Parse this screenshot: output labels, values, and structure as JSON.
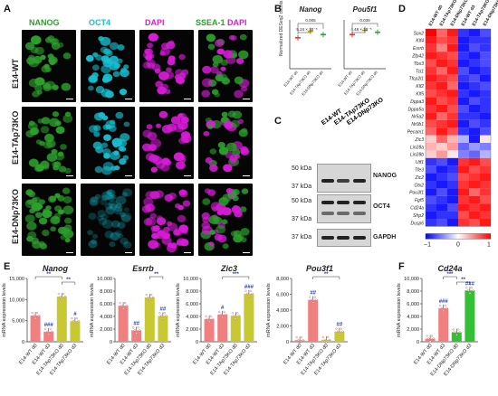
{
  "panel_labels": {
    "A": "A",
    "B": "B",
    "C": "C",
    "D": "D",
    "E": "E",
    "F": "F"
  },
  "panelA": {
    "columns": [
      "NANOG",
      "OCT4",
      "DAPI",
      "SSEA-1"
    ],
    "merge_suffix": "DAPI",
    "rows": [
      "E14-WT",
      "E14-TAp73KO",
      "E14-DNp73KO"
    ],
    "colors": {
      "NANOG": "#2ca02c",
      "OCT4": "#17becf",
      "DAPI": "#d81bd8",
      "SSEA-1": "#2ca02c"
    }
  },
  "panelB": {
    "ylabel": "Normalized DESeq2 counts",
    "charts": [
      {
        "title": "Nanog",
        "categories": [
          "E14-WT d0",
          "E14-TAp73KO d0",
          "E14-DNp73KO d0"
        ],
        "values": [
          9.5,
          11.5,
          10.5
        ],
        "pvalue1": "0.005",
        "pvalue2": "5.24 × 10⁻⁵",
        "ylim": [
          0,
          15
        ],
        "colors": [
          "#e53935",
          "#c0a000",
          "#2e9e3e"
        ]
      },
      {
        "title": "Pou5f1",
        "categories": [
          "E14-WT d0",
          "E14-TAp73KO d0",
          "E14-DNp73KO d0"
        ],
        "values": [
          10.5,
          11.8,
          11.2
        ],
        "pvalue1": "0.039",
        "pvalue2": "4.48 × 10⁻⁵",
        "ylim": [
          0,
          15
        ],
        "colors": [
          "#e53935",
          "#c0a000",
          "#2e9e3e"
        ]
      }
    ]
  },
  "panelC": {
    "lanes": [
      "E14-WT",
      "E14-TAp73KO",
      "E14-DNp73KO"
    ],
    "blots": [
      {
        "protein": "NANOG",
        "kda_top": "50 kDa",
        "kda_bottom": "37 kDa"
      },
      {
        "protein": "OCT4",
        "kda_top": "50 kDa",
        "kda_bottom": "37 kDa"
      },
      {
        "protein": "GAPDH",
        "kda_top": "37 kDa",
        "kda_bottom": ""
      }
    ]
  },
  "panelD": {
    "columns": [
      "E14-WT d0",
      "E14-TAp73KO d0",
      "E14-DNp73KO d0",
      "E14-WT d3",
      "E14-TAp73KO d3",
      "E14-DNp73KO d3"
    ],
    "genes": [
      "Sox2",
      "Klf4",
      "Esrrb",
      "Zfp42",
      "Tbx3",
      "Tcl1",
      "Tfcp2l1",
      "Klf2",
      "Klf5",
      "Dppa3",
      "Dppa5a",
      "Nr5a2",
      "Nr0b1",
      "Pecam1",
      "Zic3",
      "Lin28a",
      "Lin28b",
      "Utf1",
      "Tfe3",
      "Zic2",
      "Otx2",
      "Pou3f1",
      "Fgf5",
      "Cd24a",
      "Sfrp2",
      "Dusp6"
    ],
    "matrix": [
      [
        1,
        0.6,
        0.9,
        -0.8,
        -0.9,
        -0.7
      ],
      [
        0.9,
        0.7,
        0.8,
        -0.9,
        -0.8,
        -0.8
      ],
      [
        0.8,
        0.5,
        0.9,
        -0.9,
        -0.7,
        -0.8
      ],
      [
        0.9,
        0.8,
        0.7,
        -0.8,
        -0.9,
        -0.7
      ],
      [
        0.7,
        0.9,
        0.8,
        -0.9,
        -0.8,
        -0.7
      ],
      [
        0.8,
        0.6,
        0.9,
        -0.7,
        -0.9,
        -0.8
      ],
      [
        0.9,
        0.8,
        0.7,
        -0.8,
        -0.7,
        -0.9
      ],
      [
        0.8,
        0.9,
        0.6,
        -0.9,
        -0.8,
        -0.7
      ],
      [
        0.7,
        0.8,
        0.9,
        -0.8,
        -0.9,
        -0.8
      ],
      [
        0.9,
        0.7,
        0.8,
        -0.9,
        -0.7,
        -0.8
      ],
      [
        0.8,
        0.9,
        0.7,
        -0.7,
        -0.9,
        -0.8
      ],
      [
        0.9,
        0.6,
        0.8,
        -0.8,
        -0.8,
        -0.9
      ],
      [
        0.7,
        0.8,
        0.9,
        -0.9,
        -0.7,
        -0.8
      ],
      [
        0.6,
        0.9,
        0.7,
        -0.8,
        -0.9,
        -0.7
      ],
      [
        0.2,
        0.6,
        0.3,
        -0.3,
        -0.9,
        0.1
      ],
      [
        0.3,
        0.2,
        0.4,
        -0.6,
        -0.4,
        -0.5
      ],
      [
        0.2,
        0.4,
        0.1,
        -0.5,
        -0.6,
        -0.3
      ],
      [
        -0.8,
        -0.7,
        -0.9,
        0.8,
        0.9,
        0.7
      ],
      [
        -0.7,
        -0.9,
        -0.8,
        0.9,
        0.7,
        0.8
      ],
      [
        -0.9,
        -0.8,
        -0.7,
        0.7,
        0.8,
        0.9
      ],
      [
        -0.8,
        -0.9,
        -0.8,
        0.8,
        0.9,
        0.8
      ],
      [
        -0.9,
        -0.7,
        -0.9,
        0.9,
        0.6,
        0.8
      ],
      [
        -0.7,
        -0.8,
        -0.9,
        0.8,
        0.9,
        0.7
      ],
      [
        -0.8,
        -0.9,
        -0.7,
        0.9,
        0.8,
        0.9
      ],
      [
        -0.9,
        -0.8,
        -0.8,
        0.7,
        0.9,
        0.8
      ],
      [
        -0.8,
        -0.7,
        -0.9,
        0.8,
        0.7,
        0.9
      ]
    ],
    "legend": {
      "min": "−1",
      "mid": "0",
      "max": "1"
    }
  },
  "chart_data": [
    {
      "type": "bar",
      "title": "Nanog",
      "ylabel": "mRNA expression levels",
      "ylim": [
        0,
        15000
      ],
      "yticks": [
        "0",
        "5,000",
        "10,000",
        "15,000"
      ],
      "categories": [
        "E14-WT d0",
        "E14-WT d3",
        "E14-TAp73KO d0",
        "E14-TAp73KO d3"
      ],
      "values": [
        6200,
        2400,
        10700,
        4900
      ],
      "colors": [
        "#f08080",
        "#f08080",
        "#c8c832",
        "#c8c832"
      ],
      "marks": [
        "",
        "###",
        "",
        "#"
      ],
      "brackets": [
        {
          "from": 0,
          "to": 2,
          "label": "**"
        },
        {
          "from": 2,
          "to": 3,
          "label": "**"
        }
      ]
    },
    {
      "type": "bar",
      "title": "Esrrb",
      "ylabel": "mRNA expression levels",
      "ylim": [
        0,
        10000
      ],
      "yticks": [
        "0",
        "2,000",
        "4,000",
        "6,000",
        "8,000",
        "10,000"
      ],
      "categories": [
        "E14-WT d0",
        "E14-WT d3",
        "E14-TAp73KO d0",
        "E14-TAp73KO d3"
      ],
      "values": [
        5700,
        1800,
        7000,
        4100
      ],
      "colors": [
        "#f08080",
        "#f08080",
        "#c8c832",
        "#c8c832"
      ],
      "marks": [
        "",
        "##",
        "",
        "##"
      ],
      "brackets": [
        {
          "from": 2,
          "to": 3,
          "label": "**"
        }
      ]
    },
    {
      "type": "bar",
      "title": "Zic3",
      "ylabel": "mRNA expression levels",
      "ylim": [
        0,
        10000
      ],
      "yticks": [
        "0",
        "2,000",
        "4,000",
        "6,000",
        "8,000",
        "10,000"
      ],
      "categories": [
        "E14-WT d0",
        "E14-WT d3",
        "E14-TAp73KO d0",
        "E14-TAp73KO d3"
      ],
      "values": [
        3600,
        4300,
        4100,
        7600
      ],
      "colors": [
        "#f08080",
        "#f08080",
        "#c8c832",
        "#c8c832"
      ],
      "marks": [
        "",
        "#",
        "",
        "###"
      ],
      "brackets": [
        {
          "from": 1,
          "to": 3,
          "label": "***"
        }
      ]
    },
    {
      "type": "bar",
      "title": "Pou3f1",
      "ylabel": "mRNA expression levels",
      "ylim": [
        0,
        8000
      ],
      "yticks": [
        "0",
        "2,000",
        "4,000",
        "6,000",
        "8,000"
      ],
      "categories": [
        "E14-WT d0",
        "E14-WT d3",
        "E14-TAp73KO d0",
        "E14-TAp73KO d3"
      ],
      "values": [
        200,
        5300,
        250,
        1300
      ],
      "colors": [
        "#f08080",
        "#f08080",
        "#c8c832",
        "#c8c832"
      ],
      "marks": [
        "",
        "##",
        "",
        "##"
      ],
      "brackets": [
        {
          "from": 1,
          "to": 3,
          "label": "**"
        }
      ]
    },
    {
      "type": "bar",
      "title": "Cd24a",
      "ylabel": "mRNA expression levels",
      "ylim": [
        0,
        10000
      ],
      "yticks": [
        "0",
        "2,000",
        "4,000",
        "6,000",
        "8,000",
        "10,000"
      ],
      "categories": [
        "E14-WT d0",
        "E14-WT d3",
        "E14-DNp73KO d0",
        "E14-DNp73KO d3"
      ],
      "values": [
        500,
        5300,
        1500,
        8100
      ],
      "colors": [
        "#f08080",
        "#f08080",
        "#34c034",
        "#34c034"
      ],
      "marks": [
        "",
        "###",
        "",
        "###"
      ],
      "brackets": [
        {
          "from": 1,
          "to": 2,
          "label": "***"
        },
        {
          "from": 2,
          "to": 3,
          "label": "**"
        }
      ]
    }
  ]
}
